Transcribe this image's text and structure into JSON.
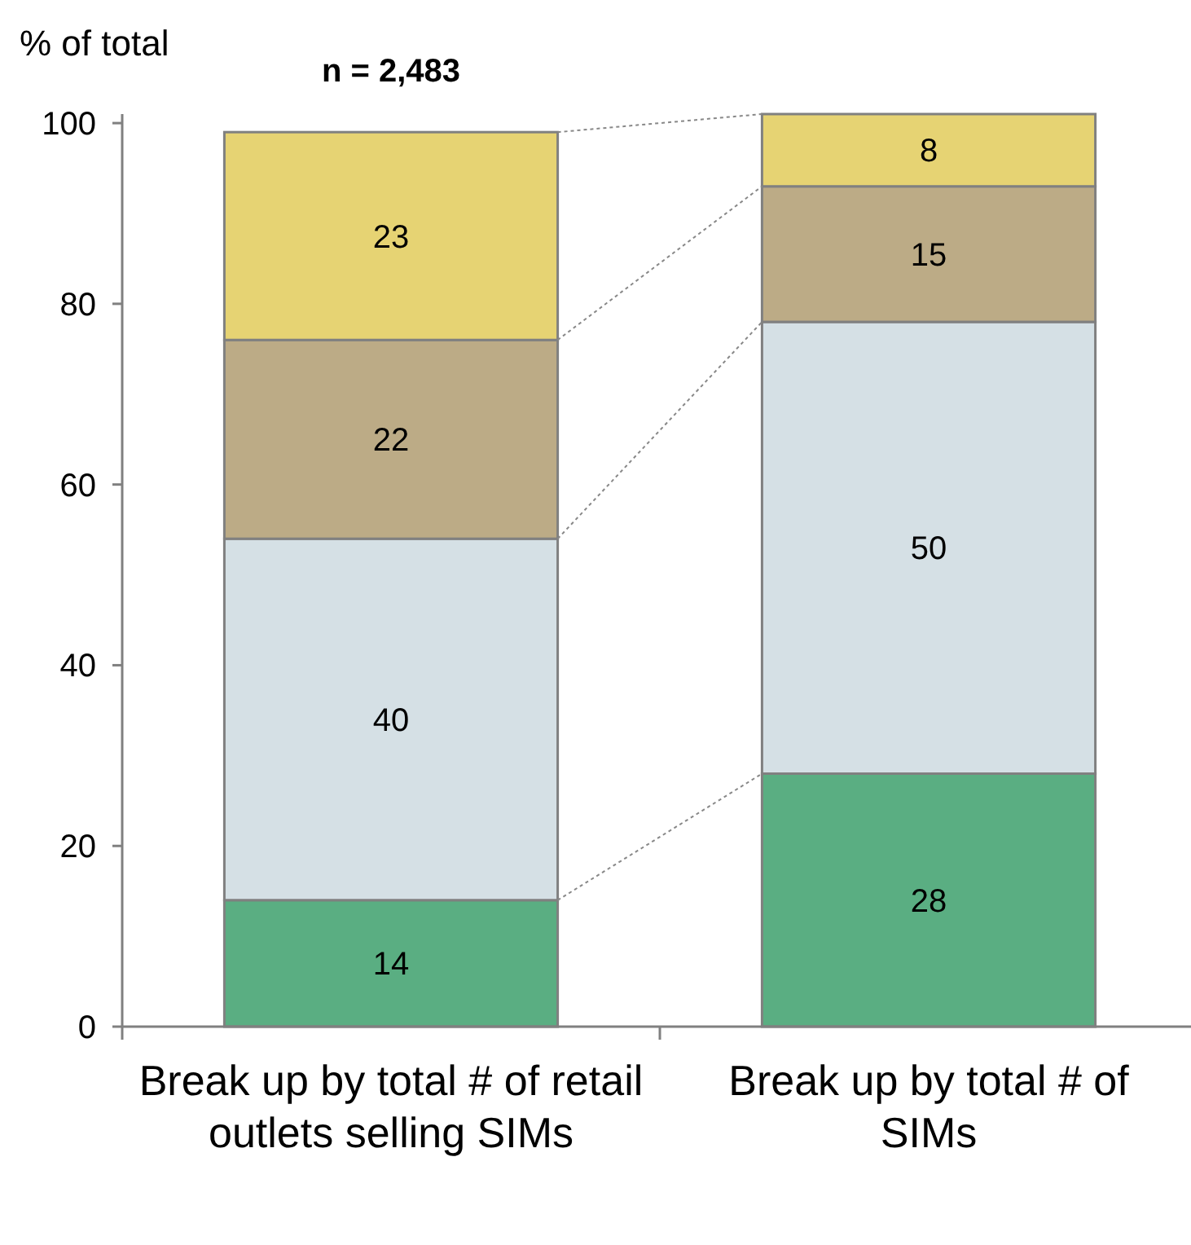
{
  "chart_data": {
    "type": "bar",
    "stacked": true,
    "title": "n = 2,483",
    "ylabel": "% of total",
    "categories": [
      "Break up by total # of retail outlets selling SIMs",
      "Break up by total # of SIMs"
    ],
    "series": [
      {
        "color": "#5aae82",
        "values": [
          14,
          28
        ]
      },
      {
        "color": "#d5e0e5",
        "values": [
          40,
          50
        ]
      },
      {
        "color": "#bcab86",
        "values": [
          22,
          15
        ]
      },
      {
        "color": "#e6d373",
        "values": [
          23,
          8
        ]
      }
    ],
    "ylim": [
      0,
      101
    ],
    "yticks": [
      0,
      20,
      40,
      60,
      80,
      100
    ],
    "data_labels": true,
    "grid": false
  }
}
